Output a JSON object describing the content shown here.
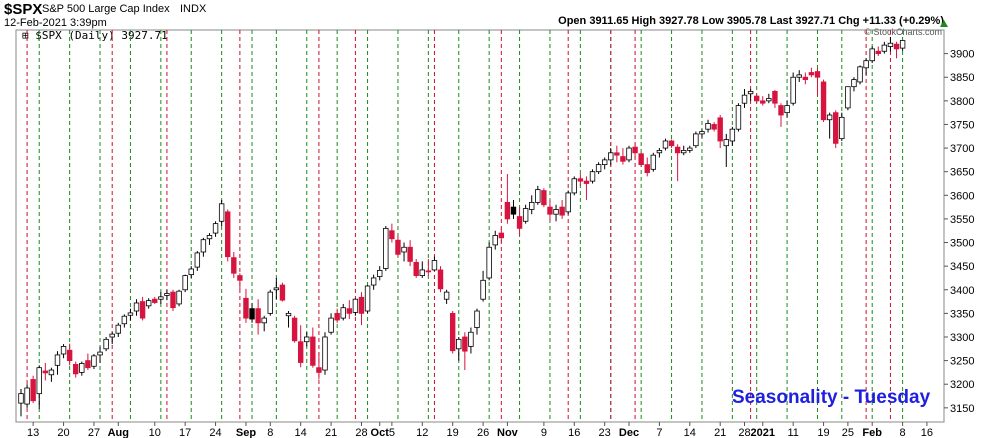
{
  "header": {
    "symbol": "$SPX",
    "description": "S&P 500 Large Cap Index",
    "exchange": "INDX",
    "datetime": "12-Feb-2021 3:39pm",
    "quote": "Open 3911.65  High 3927.78  Low 3905.78  Last 3927.71  Chg +11.33 (+0.29%)",
    "legend": "$SPX (Daily) 3927.71",
    "credit": "© StockCharts.com"
  },
  "annotation": "Seasonality - Tuesday",
  "colors": {
    "up": "#ffffff",
    "down": "#d6143f",
    "down_black": "#000000",
    "tuesday_line": "#1a8c1a",
    "other_line": "#c8102e",
    "annotation": "#1f1fe0",
    "change_arrow": "#1a8c1a"
  },
  "chart_data": {
    "type": "candlestick",
    "ylim": [
      3120,
      3950
    ],
    "y_ticks": [
      3150,
      3200,
      3250,
      3300,
      3350,
      3400,
      3450,
      3500,
      3550,
      3600,
      3650,
      3700,
      3750,
      3800,
      3850,
      3900
    ],
    "x_tick_labels": [
      {
        "i": 2,
        "label": "13"
      },
      {
        "i": 7,
        "label": "20"
      },
      {
        "i": 12,
        "label": "27"
      },
      {
        "i": 16,
        "label": "Aug"
      },
      {
        "i": 22,
        "label": "10"
      },
      {
        "i": 27,
        "label": "17"
      },
      {
        "i": 32,
        "label": "24"
      },
      {
        "i": 37,
        "label": "Sep"
      },
      {
        "i": 41,
        "label": "8"
      },
      {
        "i": 46,
        "label": "14"
      },
      {
        "i": 51,
        "label": "21"
      },
      {
        "i": 56,
        "label": "28"
      },
      {
        "i": 59,
        "label": "Oct"
      },
      {
        "i": 61,
        "label": "5"
      },
      {
        "i": 66,
        "label": "12"
      },
      {
        "i": 71,
        "label": "19"
      },
      {
        "i": 76,
        "label": "26"
      },
      {
        "i": 80,
        "label": "Nov"
      },
      {
        "i": 86,
        "label": "9"
      },
      {
        "i": 91,
        "label": "16"
      },
      {
        "i": 96,
        "label": "23"
      },
      {
        "i": 100,
        "label": "Dec"
      },
      {
        "i": 105,
        "label": "7"
      },
      {
        "i": 110,
        "label": "14"
      },
      {
        "i": 115,
        "label": "21"
      },
      {
        "i": 119,
        "label": "28"
      },
      {
        "i": 122,
        "label": "2021"
      },
      {
        "i": 127,
        "label": "11"
      },
      {
        "i": 132,
        "label": "19"
      },
      {
        "i": 136,
        "label": "25"
      },
      {
        "i": 140,
        "label": "Feb"
      },
      {
        "i": 145,
        "label": "8"
      },
      {
        "i": 149,
        "label": "16"
      }
    ],
    "tuesday_lines": [
      3,
      8,
      13,
      18,
      23,
      28,
      33,
      38,
      42,
      47,
      52,
      57,
      62,
      67,
      72,
      77,
      82,
      87,
      92,
      97,
      102,
      107,
      112,
      117,
      121,
      126,
      131,
      135,
      140,
      145
    ],
    "other_lines": [
      1,
      15,
      24,
      36,
      49,
      55,
      68,
      79,
      90,
      97,
      101,
      120,
      139,
      143
    ],
    "candles": [
      {
        "o": 3160,
        "h": 3190,
        "l": 3132,
        "c": 3180
      },
      {
        "o": 3158,
        "h": 3200,
        "l": 3150,
        "c": 3192
      },
      {
        "o": 3210,
        "h": 3218,
        "l": 3160,
        "c": 3165
      },
      {
        "o": 3180,
        "h": 3240,
        "l": 3148,
        "c": 3235
      },
      {
        "o": 3228,
        "h": 3245,
        "l": 3208,
        "c": 3224
      },
      {
        "o": 3220,
        "h": 3235,
        "l": 3205,
        "c": 3230
      },
      {
        "o": 3240,
        "h": 3270,
        "l": 3220,
        "c": 3262
      },
      {
        "o": 3264,
        "h": 3285,
        "l": 3255,
        "c": 3280
      },
      {
        "o": 3272,
        "h": 3286,
        "l": 3240,
        "c": 3250
      },
      {
        "o": 3242,
        "h": 3248,
        "l": 3214,
        "c": 3222
      },
      {
        "o": 3225,
        "h": 3248,
        "l": 3218,
        "c": 3244
      },
      {
        "o": 3250,
        "h": 3265,
        "l": 3230,
        "c": 3235
      },
      {
        "o": 3238,
        "h": 3264,
        "l": 3232,
        "c": 3260
      },
      {
        "o": 3262,
        "h": 3280,
        "l": 3245,
        "c": 3268
      },
      {
        "o": 3275,
        "h": 3300,
        "l": 3270,
        "c": 3295
      },
      {
        "o": 3300,
        "h": 3310,
        "l": 3285,
        "c": 3306
      },
      {
        "o": 3308,
        "h": 3330,
        "l": 3300,
        "c": 3325
      },
      {
        "o": 3328,
        "h": 3348,
        "l": 3320,
        "c": 3344
      },
      {
        "o": 3346,
        "h": 3360,
        "l": 3335,
        "c": 3351
      },
      {
        "o": 3355,
        "h": 3380,
        "l": 3345,
        "c": 3372
      },
      {
        "o": 3375,
        "h": 3385,
        "l": 3335,
        "c": 3340
      },
      {
        "o": 3366,
        "h": 3382,
        "l": 3360,
        "c": 3377
      },
      {
        "o": 3380,
        "h": 3385,
        "l": 3370,
        "c": 3373
      },
      {
        "o": 3380,
        "h": 3395,
        "l": 3370,
        "c": 3385
      },
      {
        "o": 3388,
        "h": 3400,
        "l": 3378,
        "c": 3392
      },
      {
        "o": 3395,
        "h": 3400,
        "l": 3355,
        "c": 3362
      },
      {
        "o": 3370,
        "h": 3400,
        "l": 3365,
        "c": 3397
      },
      {
        "o": 3400,
        "h": 3432,
        "l": 3395,
        "c": 3430
      },
      {
        "o": 3432,
        "h": 3450,
        "l": 3425,
        "c": 3444
      },
      {
        "o": 3448,
        "h": 3482,
        "l": 3440,
        "c": 3478
      },
      {
        "o": 3480,
        "h": 3510,
        "l": 3470,
        "c": 3506
      },
      {
        "o": 3508,
        "h": 3520,
        "l": 3495,
        "c": 3515
      },
      {
        "o": 3520,
        "h": 3545,
        "l": 3512,
        "c": 3540
      },
      {
        "o": 3545,
        "h": 3590,
        "l": 3535,
        "c": 3582
      },
      {
        "o": 3565,
        "h": 3570,
        "l": 3460,
        "c": 3470
      },
      {
        "o": 3468,
        "h": 3480,
        "l": 3425,
        "c": 3435
      },
      {
        "o": 3430,
        "h": 3435,
        "l": 3400,
        "c": 3420
      },
      {
        "o": 3382,
        "h": 3402,
        "l": 3330,
        "c": 3340
      },
      {
        "o": 3338,
        "h": 3372,
        "l": 3330,
        "c": 3360
      },
      {
        "o": 3360,
        "h": 3380,
        "l": 3305,
        "c": 3330
      },
      {
        "o": 3330,
        "h": 3345,
        "l": 3312,
        "c": 3340
      },
      {
        "o": 3350,
        "h": 3400,
        "l": 3345,
        "c": 3395
      },
      {
        "o": 3400,
        "h": 3425,
        "l": 3380,
        "c": 3404
      },
      {
        "o": 3410,
        "h": 3415,
        "l": 3375,
        "c": 3378
      },
      {
        "o": 3345,
        "h": 3355,
        "l": 3320,
        "c": 3350
      },
      {
        "o": 3340,
        "h": 3345,
        "l": 3288,
        "c": 3292
      },
      {
        "o": 3290,
        "h": 3325,
        "l": 3236,
        "c": 3246
      },
      {
        "o": 3290,
        "h": 3310,
        "l": 3280,
        "c": 3300
      },
      {
        "o": 3300,
        "h": 3320,
        "l": 3235,
        "c": 3240
      },
      {
        "o": 3235,
        "h": 3268,
        "l": 3210,
        "c": 3225
      },
      {
        "o": 3230,
        "h": 3310,
        "l": 3220,
        "c": 3300
      },
      {
        "o": 3310,
        "h": 3350,
        "l": 3305,
        "c": 3340
      },
      {
        "o": 3350,
        "h": 3360,
        "l": 3330,
        "c": 3336
      },
      {
        "o": 3340,
        "h": 3370,
        "l": 3335,
        "c": 3362
      },
      {
        "o": 3360,
        "h": 3378,
        "l": 3338,
        "c": 3350
      },
      {
        "o": 3352,
        "h": 3382,
        "l": 3345,
        "c": 3380
      },
      {
        "o": 3384,
        "h": 3395,
        "l": 3325,
        "c": 3350
      },
      {
        "o": 3355,
        "h": 3410,
        "l": 3350,
        "c": 3408
      },
      {
        "o": 3410,
        "h": 3432,
        "l": 3400,
        "c": 3425
      },
      {
        "o": 3428,
        "h": 3450,
        "l": 3420,
        "c": 3441
      },
      {
        "o": 3445,
        "h": 3535,
        "l": 3440,
        "c": 3530
      },
      {
        "o": 3525,
        "h": 3540,
        "l": 3500,
        "c": 3508
      },
      {
        "o": 3505,
        "h": 3515,
        "l": 3470,
        "c": 3475
      },
      {
        "o": 3480,
        "h": 3500,
        "l": 3460,
        "c": 3490
      },
      {
        "o": 3490,
        "h": 3505,
        "l": 3450,
        "c": 3460
      },
      {
        "o": 3458,
        "h": 3465,
        "l": 3425,
        "c": 3430
      },
      {
        "o": 3430,
        "h": 3460,
        "l": 3425,
        "c": 3442
      },
      {
        "o": 3440,
        "h": 3465,
        "l": 3430,
        "c": 3438
      },
      {
        "o": 3442,
        "h": 3470,
        "l": 3440,
        "c": 3462
      },
      {
        "o": 3442,
        "h": 3450,
        "l": 3395,
        "c": 3402
      },
      {
        "o": 3380,
        "h": 3400,
        "l": 3370,
        "c": 3395
      },
      {
        "o": 3350,
        "h": 3355,
        "l": 3265,
        "c": 3271
      },
      {
        "o": 3275,
        "h": 3300,
        "l": 3250,
        "c": 3295
      },
      {
        "o": 3300,
        "h": 3310,
        "l": 3230,
        "c": 3270
      },
      {
        "o": 3280,
        "h": 3320,
        "l": 3265,
        "c": 3310
      },
      {
        "o": 3320,
        "h": 3360,
        "l": 3305,
        "c": 3355
      },
      {
        "o": 3380,
        "h": 3440,
        "l": 3375,
        "c": 3420
      },
      {
        "o": 3425,
        "h": 3500,
        "l": 3420,
        "c": 3490
      },
      {
        "o": 3495,
        "h": 3525,
        "l": 3485,
        "c": 3515
      },
      {
        "o": 3520,
        "h": 3530,
        "l": 3500,
        "c": 3510
      },
      {
        "o": 3585,
        "h": 3645,
        "l": 3540,
        "c": 3550
      },
      {
        "o": 3560,
        "h": 3590,
        "l": 3550,
        "c": 3575
      },
      {
        "o": 3555,
        "h": 3575,
        "l": 3515,
        "c": 3530
      },
      {
        "o": 3545,
        "h": 3580,
        "l": 3540,
        "c": 3572
      },
      {
        "o": 3570,
        "h": 3600,
        "l": 3560,
        "c": 3585
      },
      {
        "o": 3585,
        "h": 3620,
        "l": 3580,
        "c": 3612
      },
      {
        "o": 3610,
        "h": 3615,
        "l": 3575,
        "c": 3580
      },
      {
        "o": 3575,
        "h": 3590,
        "l": 3545,
        "c": 3560
      },
      {
        "o": 3560,
        "h": 3580,
        "l": 3545,
        "c": 3570
      },
      {
        "o": 3575,
        "h": 3590,
        "l": 3550,
        "c": 3558
      },
      {
        "o": 3565,
        "h": 3610,
        "l": 3560,
        "c": 3605
      },
      {
        "o": 3605,
        "h": 3640,
        "l": 3600,
        "c": 3635
      },
      {
        "o": 3635,
        "h": 3645,
        "l": 3620,
        "c": 3630
      },
      {
        "o": 3630,
        "h": 3640,
        "l": 3590,
        "c": 3625
      },
      {
        "o": 3630,
        "h": 3655,
        "l": 3625,
        "c": 3650
      },
      {
        "o": 3650,
        "h": 3670,
        "l": 3645,
        "c": 3665
      },
      {
        "o": 3665,
        "h": 3680,
        "l": 3655,
        "c": 3675
      },
      {
        "o": 3675,
        "h": 3700,
        "l": 3665,
        "c": 3690
      },
      {
        "o": 3690,
        "h": 3705,
        "l": 3670,
        "c": 3685
      },
      {
        "o": 3682,
        "h": 3700,
        "l": 3665,
        "c": 3672
      },
      {
        "o": 3675,
        "h": 3705,
        "l": 3670,
        "c": 3700
      },
      {
        "o": 3702,
        "h": 3712,
        "l": 3680,
        "c": 3690
      },
      {
        "o": 3688,
        "h": 3690,
        "l": 3660,
        "c": 3665
      },
      {
        "o": 3665,
        "h": 3680,
        "l": 3640,
        "c": 3648
      },
      {
        "o": 3655,
        "h": 3690,
        "l": 3650,
        "c": 3685
      },
      {
        "o": 3690,
        "h": 3700,
        "l": 3680,
        "c": 3695
      },
      {
        "o": 3700,
        "h": 3720,
        "l": 3695,
        "c": 3715
      },
      {
        "o": 3715,
        "h": 3718,
        "l": 3700,
        "c": 3705
      },
      {
        "o": 3702,
        "h": 3708,
        "l": 3630,
        "c": 3690
      },
      {
        "o": 3690,
        "h": 3705,
        "l": 3685,
        "c": 3695
      },
      {
        "o": 3695,
        "h": 3705,
        "l": 3690,
        "c": 3700
      },
      {
        "o": 3705,
        "h": 3735,
        "l": 3700,
        "c": 3730
      },
      {
        "o": 3730,
        "h": 3740,
        "l": 3722,
        "c": 3735
      },
      {
        "o": 3740,
        "h": 3760,
        "l": 3733,
        "c": 3752
      },
      {
        "o": 3750,
        "h": 3755,
        "l": 3735,
        "c": 3740
      },
      {
        "o": 3764,
        "h": 3770,
        "l": 3700,
        "c": 3715
      },
      {
        "o": 3705,
        "h": 3730,
        "l": 3660,
        "c": 3718
      },
      {
        "o": 3715,
        "h": 3745,
        "l": 3705,
        "c": 3740
      },
      {
        "o": 3740,
        "h": 3795,
        "l": 3735,
        "c": 3790
      },
      {
        "o": 3795,
        "h": 3825,
        "l": 3785,
        "c": 3812
      },
      {
        "o": 3815,
        "h": 3825,
        "l": 3800,
        "c": 3820
      },
      {
        "o": 3810,
        "h": 3815,
        "l": 3795,
        "c": 3800
      },
      {
        "o": 3800,
        "h": 3810,
        "l": 3790,
        "c": 3795
      },
      {
        "o": 3800,
        "h": 3815,
        "l": 3795,
        "c": 3805
      },
      {
        "o": 3820,
        "h": 3823,
        "l": 3785,
        "c": 3795
      },
      {
        "o": 3790,
        "h": 3795,
        "l": 3745,
        "c": 3770
      },
      {
        "o": 3775,
        "h": 3800,
        "l": 3765,
        "c": 3790
      },
      {
        "o": 3795,
        "h": 3860,
        "l": 3790,
        "c": 3850
      },
      {
        "o": 3850,
        "h": 3865,
        "l": 3840,
        "c": 3855
      },
      {
        "o": 3850,
        "h": 3860,
        "l": 3835,
        "c": 3845
      },
      {
        "o": 3860,
        "h": 3870,
        "l": 3850,
        "c": 3855
      },
      {
        "o": 3862,
        "h": 3870,
        "l": 3810,
        "c": 3850
      },
      {
        "o": 3840,
        "h": 3845,
        "l": 3755,
        "c": 3760
      },
      {
        "o": 3760,
        "h": 3775,
        "l": 3720,
        "c": 3770
      },
      {
        "o": 3775,
        "h": 3780,
        "l": 3700,
        "c": 3710
      },
      {
        "o": 3720,
        "h": 3775,
        "l": 3715,
        "c": 3765
      },
      {
        "o": 3785,
        "h": 3830,
        "l": 3780,
        "c": 3830
      },
      {
        "o": 3830,
        "h": 3850,
        "l": 3820,
        "c": 3845
      },
      {
        "o": 3840,
        "h": 3875,
        "l": 3835,
        "c": 3872
      },
      {
        "o": 3870,
        "h": 3890,
        "l": 3855,
        "c": 3885
      },
      {
        "o": 3885,
        "h": 3915,
        "l": 3880,
        "c": 3910
      },
      {
        "o": 3905,
        "h": 3915,
        "l": 3895,
        "c": 3900
      },
      {
        "o": 3905,
        "h": 3925,
        "l": 3900,
        "c": 3918
      },
      {
        "o": 3915,
        "h": 3935,
        "l": 3905,
        "c": 3922
      },
      {
        "o": 3920,
        "h": 3925,
        "l": 3890,
        "c": 3910
      },
      {
        "o": 3911.65,
        "h": 3927.78,
        "l": 3905.78,
        "c": 3927.71
      }
    ],
    "black_body_indices": [
      38,
      81
    ]
  }
}
